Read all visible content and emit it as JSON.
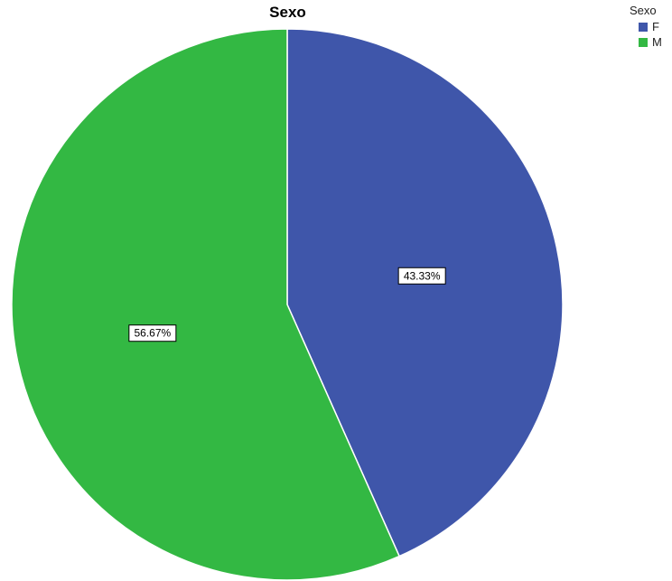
{
  "chart_data": {
    "type": "pie",
    "title": "Sexo",
    "legend_title": "Sexo",
    "legend_position": "top-right",
    "start_angle_deg": 0,
    "direction": "clockwise",
    "slices": [
      {
        "name": "F",
        "value": 43.33,
        "label": "43.33%",
        "color": "#3f56aa"
      },
      {
        "name": "M",
        "value": 56.67,
        "label": "56.67%",
        "color": "#33b843"
      }
    ]
  }
}
